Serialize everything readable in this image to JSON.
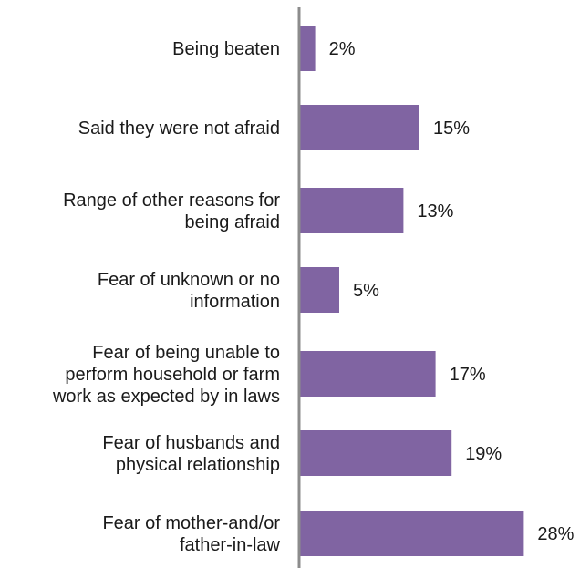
{
  "chart_data": {
    "type": "bar",
    "orientation": "horizontal",
    "title": "",
    "xlabel": "",
    "ylabel": "",
    "categories": [
      "Being beaten",
      "Said they were not afraid",
      "Range of other reasons for being afraid",
      "Fear of unknown or no information",
      "Fear of being unable to perform household or farm work as expected by in laws",
      "Fear of husbands and physical relationship",
      "Fear of mother-and/or father-in-law"
    ],
    "category_lines": [
      [
        "Being beaten"
      ],
      [
        "Said they were not afraid"
      ],
      [
        "Range of other reasons for",
        "being afraid"
      ],
      [
        "Fear of unknown or no",
        "information"
      ],
      [
        "Fear of being unable to",
        "perform household or farm",
        "work as expected by in laws"
      ],
      [
        "Fear of husbands and",
        "physical relationship"
      ],
      [
        "Fear of mother-and/or",
        "father-in-law"
      ]
    ],
    "values": [
      2,
      15,
      13,
      5,
      17,
      19,
      28
    ],
    "value_labels": [
      "2%",
      "15%",
      "13%",
      "5%",
      "17%",
      "19%",
      "28%"
    ],
    "xlim": [
      0,
      30
    ],
    "grid": false,
    "legend": "none",
    "colors": {
      "bar": "#8064a2",
      "axis": "#8c8c8c",
      "text": "#1a1a1a"
    }
  }
}
